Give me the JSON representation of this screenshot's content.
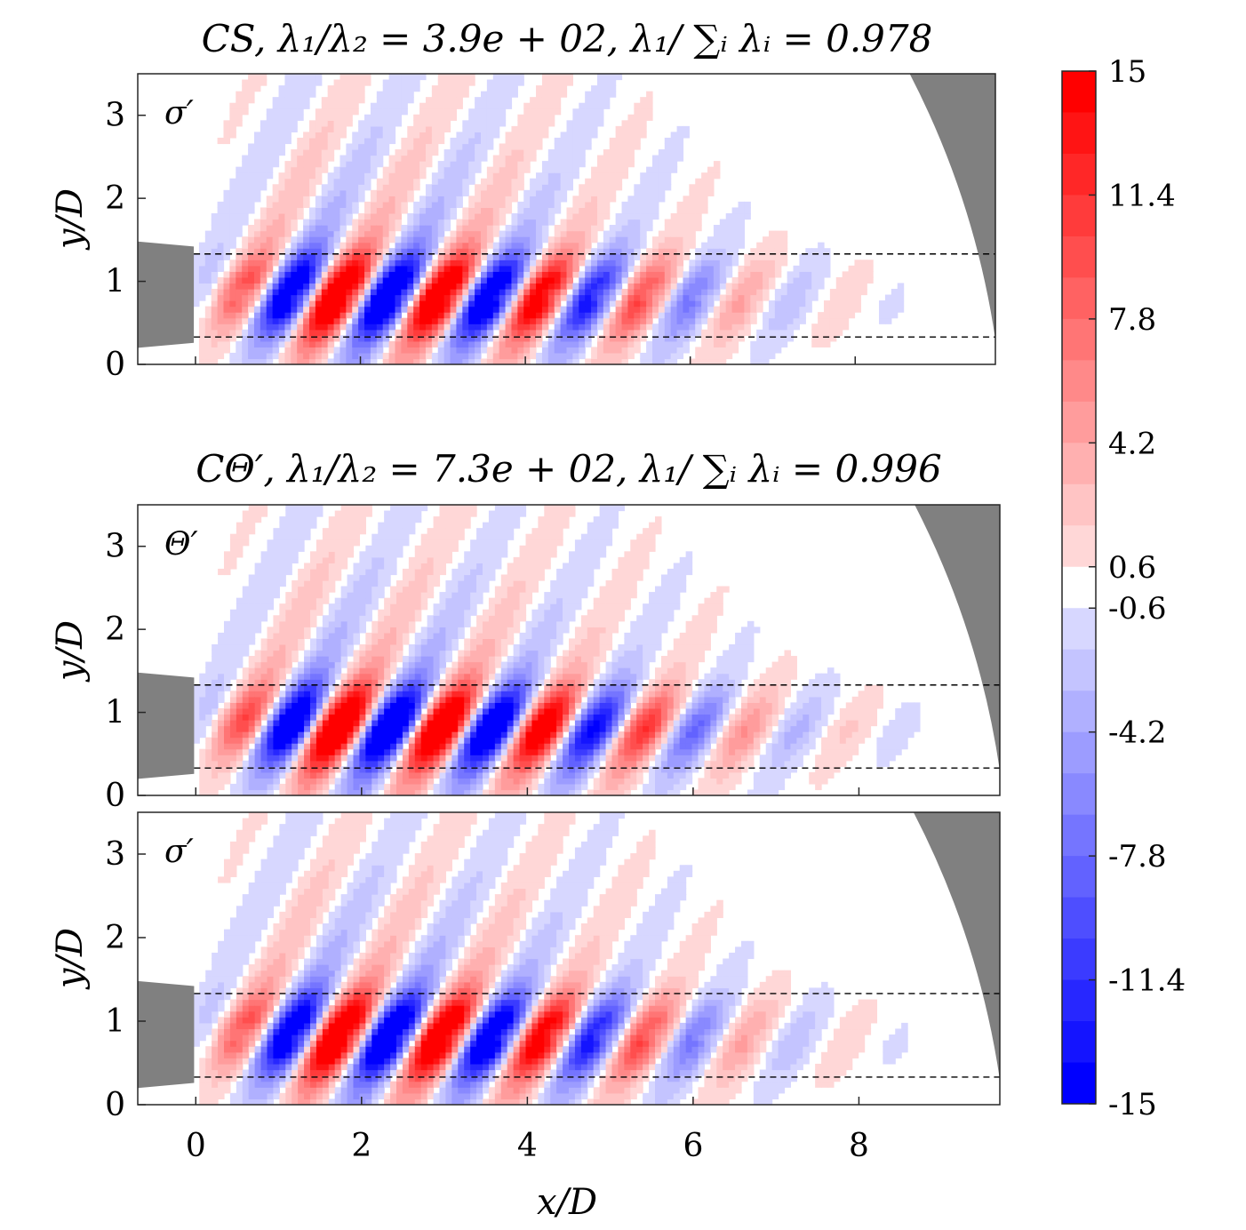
{
  "chart_data": {
    "type": "heatmap",
    "title_panel1": "CS, λ₁/λ₂ = 3.9e + 02, λ₁/ ∑ᵢ λᵢ = 0.978",
    "title_panel2": "CΘ′, λ₁/λ₂ = 7.3e + 02, λ₁/ ∑ᵢ λᵢ = 0.996",
    "xlabel": "x/D",
    "ylabel": "y/D",
    "xlim": [
      -0.7,
      9.7
    ],
    "ylim": [
      0,
      3.5
    ],
    "xticks": [
      "0",
      "2",
      "4",
      "6",
      "8"
    ],
    "yticks": [
      "0",
      "1",
      "2",
      "3"
    ],
    "jet_lines_y": [
      0.33,
      1.33
    ],
    "panels": [
      {
        "label": "σ′",
        "variant": "shock",
        "wave_amplitude": 1.0,
        "decay": 0.11,
        "wavelength": 1.24
      },
      {
        "label": "Θ′",
        "variant": "smooth",
        "wave_amplitude": 1.0,
        "decay": 0.1,
        "wavelength": 1.24
      },
      {
        "label": "σ′",
        "variant": "shock",
        "wave_amplitude": 1.0,
        "decay": 0.11,
        "wavelength": 1.24
      }
    ],
    "colorbar": {
      "range": [
        -15,
        15
      ],
      "tick_labels": [
        "15",
        "11.4",
        "7.8",
        "4.2",
        "0.6",
        "-0.6",
        "-4.2",
        "-7.8",
        "-11.4",
        "-15"
      ],
      "tick_values": [
        15,
        11.4,
        7.8,
        4.2,
        0.6,
        -0.6,
        -4.2,
        -7.8,
        -11.4,
        -15
      ],
      "levels": 25,
      "colors": {
        "high": "#ff0000",
        "mid": "#ffffff",
        "low": "#0000ff"
      }
    },
    "mask_color": "#808080"
  }
}
